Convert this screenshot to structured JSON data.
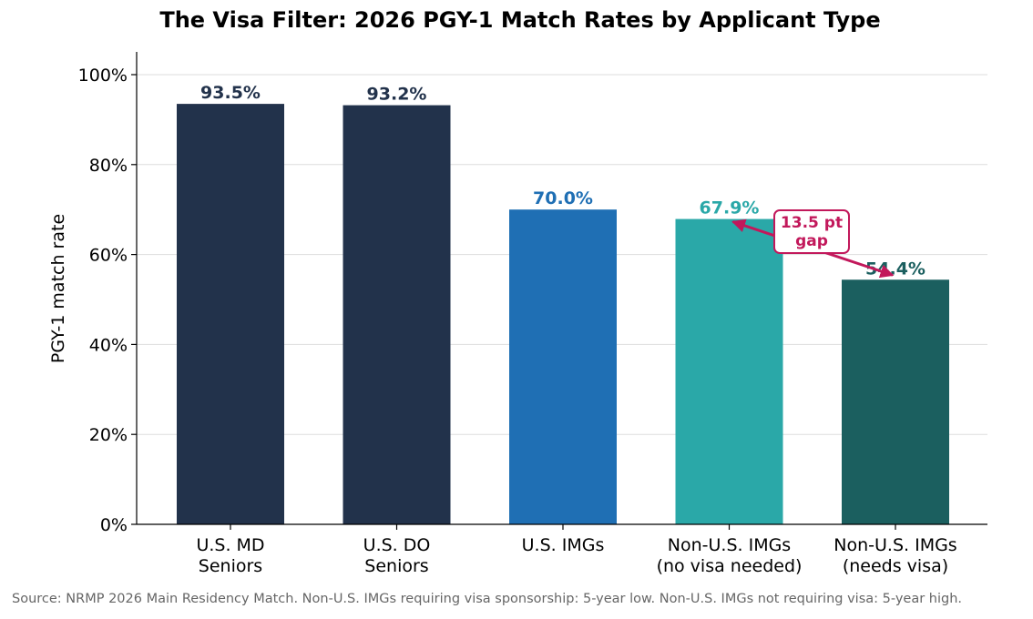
{
  "chart_data": {
    "type": "bar",
    "title": "The Visa Filter: 2026 PGY-1 Match Rates by Applicant Type",
    "ylabel": "PGY-1 match rate",
    "xlabel": "",
    "ylim": [
      0,
      100
    ],
    "yticks": [
      "0%",
      "20%",
      "40%",
      "60%",
      "80%",
      "100%"
    ],
    "ytick_values": [
      0,
      20,
      40,
      60,
      80,
      100
    ],
    "grid": "horizontal",
    "categories": [
      [
        "U.S. MD",
        "Seniors"
      ],
      [
        "U.S. DO",
        "Seniors"
      ],
      [
        "U.S. IMGs"
      ],
      [
        "Non-U.S. IMGs",
        "(no visa needed)"
      ],
      [
        "Non-U.S. IMGs",
        "(needs visa)"
      ]
    ],
    "values": [
      93.5,
      93.2,
      70.0,
      67.9,
      54.4
    ],
    "value_labels": [
      "93.5%",
      "93.2%",
      "70.0%",
      "67.9%",
      "54.4%"
    ],
    "colors": [
      "#22324b",
      "#22324b",
      "#1f6fb4",
      "#2aa8a8",
      "#1b5f5f"
    ],
    "annotation": {
      "text": [
        "13.5 pt",
        "gap"
      ],
      "from_category_index": 4,
      "to_category_index": 3,
      "color": "#c2185b"
    },
    "source": "Source: NRMP 2026 Main Residency Match. Non-U.S. IMGs requiring visa sponsorship: 5-year low. Non-U.S. IMGs not requiring visa: 5-year high."
  }
}
